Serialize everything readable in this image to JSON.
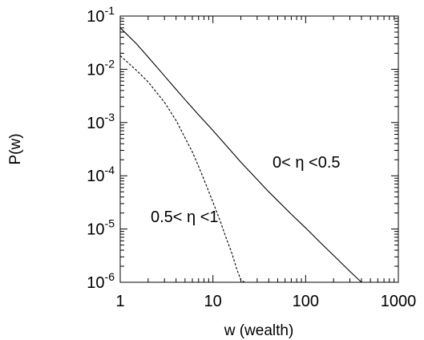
{
  "chart_data": {
    "type": "line",
    "title": "",
    "xlabel": "w (wealth)",
    "ylabel": "P(w)",
    "xscale": "log",
    "yscale": "log",
    "xlim": [
      1,
      1000
    ],
    "ylim": [
      1e-06,
      0.1
    ],
    "grid": false,
    "legend": "none",
    "x_ticks": [
      {
        "value": 1,
        "label": "1"
      },
      {
        "value": 10,
        "label": "10"
      },
      {
        "value": 100,
        "label": "100"
      },
      {
        "value": 1000,
        "label": "1000"
      }
    ],
    "y_ticks": [
      {
        "value": 0.1,
        "base": "10",
        "exp": "-1"
      },
      {
        "value": 0.01,
        "base": "10",
        "exp": "-2"
      },
      {
        "value": 0.001,
        "base": "10",
        "exp": "-3"
      },
      {
        "value": 0.0001,
        "base": "10",
        "exp": "-4"
      },
      {
        "value": 1e-05,
        "base": "10",
        "exp": "-5"
      },
      {
        "value": 1e-06,
        "base": "10",
        "exp": "-6"
      }
    ],
    "annotations": [
      {
        "text": "0< η <0.5",
        "series": 0
      },
      {
        "text": "0.5< η <1",
        "series": 1
      }
    ],
    "series": [
      {
        "style": "solid",
        "color": "#000000",
        "x": [
          1,
          1.5,
          2,
          3,
          4,
          5,
          7,
          10,
          15,
          20,
          30,
          40,
          50,
          70,
          100,
          150,
          200,
          300,
          400,
          500
        ],
        "y": [
          0.06,
          0.03,
          0.017,
          0.0075,
          0.0042,
          0.0027,
          0.0014,
          0.00071,
          0.00032,
          0.00018,
          8.5e-05,
          5e-05,
          3.4e-05,
          1.9e-05,
          1.05e-05,
          5.2e-06,
          3.2e-06,
          1.6e-06,
          1e-06,
          1e-06
        ]
      },
      {
        "style": "dashed",
        "color": "#000000",
        "x": [
          1,
          1.5,
          2,
          3,
          4,
          5,
          6,
          7,
          8,
          10,
          12,
          14,
          16,
          18,
          20,
          22,
          25
        ],
        "y": [
          0.018,
          0.0095,
          0.0058,
          0.0024,
          0.0011,
          0.00052,
          0.00028,
          0.00015,
          8.5e-05,
          3.2e-05,
          1.4e-05,
          6.5e-06,
          3.5e-06,
          1.8e-06,
          1.1e-06,
          1e-06,
          1e-06
        ]
      }
    ]
  }
}
